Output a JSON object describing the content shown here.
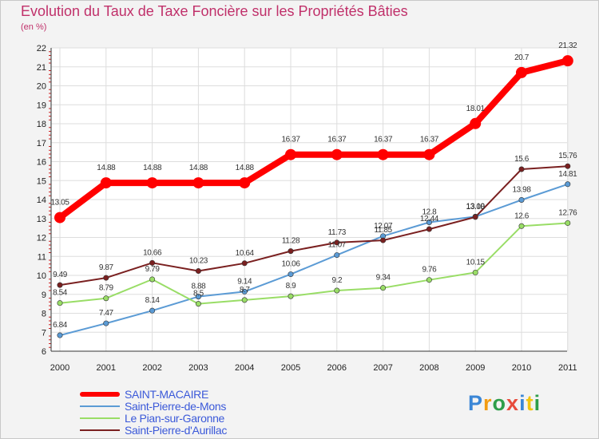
{
  "chart_data": {
    "type": "line",
    "title": "Evolution du Taux de Taxe Foncière sur les Propriétés Bâties",
    "unit_label": "(en %)",
    "x": [
      "2000",
      "2001",
      "2002",
      "2003",
      "2004",
      "2005",
      "2006",
      "2007",
      "2008",
      "2009",
      "2010",
      "2011"
    ],
    "ylim": [
      6,
      22
    ],
    "yticks": [
      "6",
      "7",
      "8",
      "9",
      "10",
      "11",
      "12",
      "13",
      "14",
      "15",
      "16",
      "17",
      "18",
      "19",
      "20",
      "21",
      "22"
    ],
    "series": [
      {
        "name": "SAINT-MACAIRE",
        "color": "#ff0000",
        "values": [
          13.05,
          14.88,
          14.88,
          14.88,
          14.88,
          16.37,
          16.37,
          16.37,
          16.37,
          18.01,
          20.7,
          21.32
        ],
        "labels": [
          "13.05",
          "14.88",
          "14.88",
          "14.88",
          "14.88",
          "16.37",
          "16.37",
          "16.37",
          "16.37",
          "18.01",
          "20.7",
          "21.32"
        ]
      },
      {
        "name": "Saint-Pierre-de-Mons",
        "color": "#5b9bd5",
        "values": [
          6.84,
          7.47,
          8.14,
          8.88,
          9.14,
          10.06,
          11.07,
          12.07,
          12.8,
          13.1,
          13.98,
          14.81
        ],
        "labels": [
          "6.84",
          "7.47",
          "8.14",
          "8.88",
          "9.14",
          "10.06",
          "11.07",
          "12.07",
          "12.8",
          "13.10",
          "13.98",
          "14.81"
        ]
      },
      {
        "name": "Le Pian-sur-Garonne",
        "color": "#99dd66",
        "values": [
          8.54,
          8.79,
          9.79,
          8.5,
          8.7,
          8.9,
          9.2,
          9.34,
          9.76,
          10.15,
          12.6,
          12.76
        ],
        "labels": [
          "8.54",
          "8.79",
          "9.79",
          "8.5",
          "8.7",
          "8.9",
          "9.2",
          "9.34",
          "9.76",
          "10.15",
          "12.6",
          "12.76"
        ]
      },
      {
        "name": "Saint-Pierre-d'Aurillac",
        "color": "#7a2020",
        "values": [
          9.49,
          9.87,
          10.66,
          10.23,
          10.64,
          11.28,
          11.73,
          11.85,
          12.44,
          13.08,
          15.6,
          15.76
        ],
        "labels": [
          "9.49",
          "9.87",
          "10.66",
          "10.23",
          "10.64",
          "11.28",
          "11.73",
          "11.85",
          "12.44",
          "13.08",
          "15.6",
          "15.76"
        ]
      }
    ],
    "legend_position": "bottom-left"
  },
  "logo": {
    "letters": [
      "P",
      "r",
      "o",
      "x",
      "i",
      "t",
      "i"
    ],
    "colors": [
      "#3a86d6",
      "#f39c12",
      "#2e9e4a",
      "#e74c3c",
      "#3a86d6",
      "#f1c40f",
      "#2e9e4a"
    ]
  }
}
